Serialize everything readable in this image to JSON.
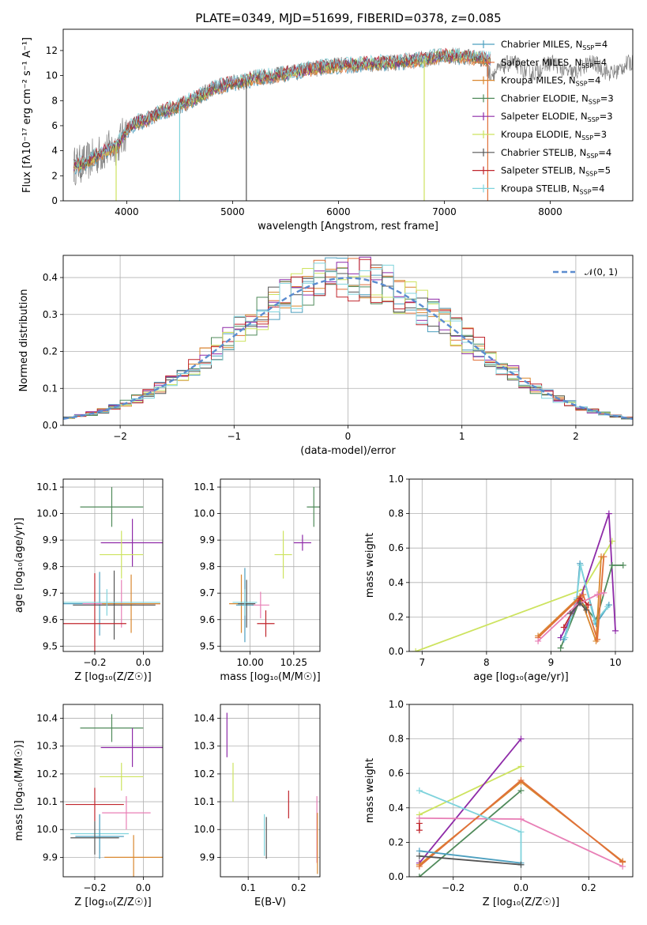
{
  "figure": {
    "title": "PLATE=0349, MJD=51699, FIBERID=0378, z=0.085"
  },
  "chart_data": [
    {
      "id": "spectrum",
      "type": "line",
      "xlabel": "wavelength [Angstrom, rest frame]",
      "ylabel": "Flux [fλ10⁻¹⁷ erg cm⁻² s⁻¹ A⁻¹]",
      "xlim": [
        3400,
        8780
      ],
      "ylim": [
        0,
        13.7
      ],
      "xticks": [
        "4000",
        "5000",
        "6000",
        "7000",
        "8000"
      ],
      "xtick_values": [
        4000,
        5000,
        6000,
        7000,
        8000
      ],
      "yticks": [
        "0",
        "2",
        "4",
        "6",
        "8",
        "10",
        "12"
      ],
      "ytick_values": [
        0,
        2,
        4,
        6,
        8,
        10,
        12
      ],
      "grid": false,
      "legend_position": "right",
      "data_color": "#808080",
      "model_continuum": {
        "x": [
          3500,
          3600,
          3700,
          3800,
          3900,
          4000,
          4100,
          4200,
          4300,
          4400,
          4500,
          4600,
          4700,
          4800,
          4900,
          5000,
          5100,
          5200,
          5400,
          5600,
          5800,
          6000,
          6200,
          6400,
          6600,
          6800,
          7000,
          7200,
          7400
        ],
        "y": [
          2.8,
          3.0,
          3.5,
          4.0,
          4.3,
          5.6,
          6.3,
          6.5,
          7.0,
          7.3,
          7.6,
          8.0,
          8.4,
          8.9,
          9.2,
          9.4,
          9.5,
          9.8,
          10.0,
          10.3,
          10.6,
          10.8,
          10.9,
          11.0,
          11.1,
          11.3,
          11.6,
          11.5,
          11.3
        ]
      },
      "series": [
        {
          "name": "Chabrier MILES",
          "nssp": "4",
          "color": "#4c9fbf"
        },
        {
          "name": "Salpeter MILES",
          "nssp": "4",
          "color": "#e0703a"
        },
        {
          "name": "Kroupa MILES",
          "nssp": "4",
          "color": "#d9872f"
        },
        {
          "name": "Chabrier ELODIE",
          "nssp": "3",
          "color": "#4f8a5a"
        },
        {
          "name": "Salpeter ELODIE",
          "nssp": "3",
          "color": "#8e2aa8"
        },
        {
          "name": "Kroupa ELODIE",
          "nssp": "3",
          "color": "#cde35f"
        },
        {
          "name": "Chabrier STELIB",
          "nssp": "4",
          "color": "#555555"
        },
        {
          "name": "Salpeter STELIB",
          "nssp": "5",
          "color": "#c0262d"
        },
        {
          "name": "Kroupa STELIB",
          "nssp": "4",
          "color": "#7fd3dc"
        }
      ]
    },
    {
      "id": "residuals",
      "type": "area",
      "xlabel": "(data-model)/error",
      "ylabel": "Normed distribution",
      "xlim": [
        -2.5,
        2.5
      ],
      "ylim": [
        0,
        0.46
      ],
      "xticks": [
        "−2",
        "−1",
        "0",
        "1",
        "2"
      ],
      "xtick_values": [
        -2,
        -1,
        0,
        1,
        2
      ],
      "yticks": [
        "0.0",
        "0.1",
        "0.2",
        "0.3",
        "0.4"
      ],
      "ytick_values": [
        0,
        0.1,
        0.2,
        0.3,
        0.4
      ],
      "grid": true,
      "legend_position": "top-right",
      "legend": [
        "𝒩(0, 1)"
      ],
      "bin_width": 0.1,
      "gaussian_color": "#5b8ccf",
      "series_colors": [
        "#4c9fbf",
        "#e0703a",
        "#d9872f",
        "#4f8a5a",
        "#8e2aa8",
        "#cde35f",
        "#555555",
        "#c0262d",
        "#7fd3dc"
      ]
    },
    {
      "id": "age-vs-Z",
      "type": "scatter",
      "xlabel": "Z [log₁₀(Z/Z☉)]",
      "ylabel": "age  [log₁₀(age/yr)]",
      "xlim": [
        -0.33,
        0.08
      ],
      "ylim": [
        9.48,
        10.13
      ],
      "xticks": [
        "−0.2",
        "0.0"
      ],
      "xtick_values": [
        -0.2,
        0.0
      ],
      "yticks": [
        "9.5",
        "9.6",
        "9.7",
        "9.8",
        "9.9",
        "10.0",
        "10.1"
      ],
      "ytick_values": [
        9.5,
        9.6,
        9.7,
        9.8,
        9.9,
        10.0,
        10.1
      ],
      "grid": true,
      "points": [
        {
          "x": -0.13,
          "y": 10.025,
          "xerr": 0.13,
          "yerr": 0.075,
          "color": "#4f8a5a"
        },
        {
          "x": -0.045,
          "y": 9.89,
          "xerr": 0.13,
          "yerr": 0.09,
          "color": "#8e2aa8"
        },
        {
          "x": -0.09,
          "y": 9.845,
          "xerr": 0.09,
          "yerr": 0.09,
          "color": "#cde35f"
        },
        {
          "x": -0.18,
          "y": 9.66,
          "xerr": 0.15,
          "yerr": 0.12,
          "color": "#4c9fbf"
        },
        {
          "x": -0.09,
          "y": 9.66,
          "xerr": 0.16,
          "yerr": 0.09,
          "color": "#e87fb6"
        },
        {
          "x": -0.05,
          "y": 9.66,
          "xerr": 0.12,
          "yerr": 0.11,
          "color": "#d9872f"
        },
        {
          "x": -0.12,
          "y": 9.655,
          "xerr": 0.17,
          "yerr": 0.13,
          "color": "#555555"
        },
        {
          "x": -0.2,
          "y": 9.585,
          "xerr": 0.13,
          "yerr": 0.19,
          "color": "#c0262d"
        },
        {
          "x": -0.15,
          "y": 9.665,
          "xerr": 0.22,
          "yerr": 0.05,
          "color": "#7fd3dc"
        }
      ]
    },
    {
      "id": "age-vs-mass",
      "type": "scatter",
      "xlabel": "mass [log₁₀(M/M☉)]",
      "ylabel": "",
      "xlim": [
        9.83,
        10.4
      ],
      "ylim": [
        9.48,
        10.13
      ],
      "xticks": [
        "10.00",
        "10.25"
      ],
      "xtick_values": [
        10.0,
        10.25
      ],
      "yticks": [
        "9.5",
        "9.6",
        "9.7",
        "9.8",
        "9.9",
        "10.0",
        "10.1"
      ],
      "ytick_values": [
        9.5,
        9.6,
        9.7,
        9.8,
        9.9,
        10.0,
        10.1
      ],
      "grid": true,
      "points": [
        {
          "x": 10.365,
          "y": 10.025,
          "xerr": 0.04,
          "yerr": 0.075,
          "color": "#4f8a5a"
        },
        {
          "x": 10.3,
          "y": 9.89,
          "xerr": 0.05,
          "yerr": 0.03,
          "color": "#8e2aa8"
        },
        {
          "x": 10.19,
          "y": 9.845,
          "xerr": 0.05,
          "yerr": 0.09,
          "color": "#cde35f"
        },
        {
          "x": 9.95,
          "y": 9.66,
          "xerr": 0.07,
          "yerr": 0.11,
          "color": "#d9872f"
        },
        {
          "x": 10.06,
          "y": 9.655,
          "xerr": 0.05,
          "yerr": 0.05,
          "color": "#e87fb6"
        },
        {
          "x": 9.97,
          "y": 9.655,
          "xerr": 0.05,
          "yerr": 0.14,
          "color": "#4c9fbf"
        },
        {
          "x": 9.98,
          "y": 9.66,
          "xerr": 0.05,
          "yerr": 0.09,
          "color": "#555555"
        },
        {
          "x": 10.09,
          "y": 9.585,
          "xerr": 0.05,
          "yerr": 0.05,
          "color": "#c0262d"
        },
        {
          "x": 9.97,
          "y": 9.665,
          "xerr": 0.07,
          "yerr": 0.05,
          "color": "#7fd3dc"
        }
      ]
    },
    {
      "id": "weight-vs-age",
      "type": "line",
      "xlabel": "age  [log₁₀(age/yr)]",
      "ylabel": "mass weight",
      "xlim": [
        6.8,
        10.27
      ],
      "ylim": [
        0,
        1.0
      ],
      "xticks": [
        "7",
        "8",
        "9",
        "10"
      ],
      "xtick_values": [
        7,
        8,
        9,
        10
      ],
      "yticks": [
        "0.0",
        "0.2",
        "0.4",
        "0.6",
        "0.8",
        "1.0"
      ],
      "ytick_values": [
        0,
        0.2,
        0.4,
        0.6,
        0.8,
        1.0
      ],
      "grid": true,
      "series": [
        {
          "color": "#cde35f",
          "x": [
            6.9,
            9.5,
            9.95
          ],
          "y": [
            0.0,
            0.36,
            0.64
          ]
        },
        {
          "color": "#8e2aa8",
          "x": [
            9.15,
            9.45,
            9.9,
            10.0
          ],
          "y": [
            0.08,
            0.3,
            0.8,
            0.12
          ]
        },
        {
          "color": "#4f8a5a",
          "x": [
            9.15,
            9.45,
            9.7,
            9.95,
            10.12
          ],
          "y": [
            0.02,
            0.3,
            0.18,
            0.5,
            0.5
          ]
        },
        {
          "color": "#4c9fbf",
          "x": [
            9.2,
            9.4,
            9.45,
            9.7,
            9.9
          ],
          "y": [
            0.07,
            0.3,
            0.51,
            0.16,
            0.27
          ]
        },
        {
          "color": "#7fd3dc",
          "x": [
            9.22,
            9.4,
            9.46,
            9.68,
            9.88
          ],
          "y": [
            0.08,
            0.31,
            0.5,
            0.17,
            0.26
          ]
        },
        {
          "color": "#d9872f",
          "x": [
            8.8,
            9.45,
            9.7,
            9.78
          ],
          "y": [
            0.09,
            0.32,
            0.06,
            0.55
          ]
        },
        {
          "color": "#e0703a",
          "x": [
            8.8,
            9.5,
            9.72,
            9.82
          ],
          "y": [
            0.08,
            0.33,
            0.07,
            0.55
          ]
        },
        {
          "color": "#c0262d",
          "x": [
            9.2,
            9.45,
            9.58
          ],
          "y": [
            0.14,
            0.31,
            0.27
          ]
        },
        {
          "color": "#e87fb6",
          "x": [
            8.8,
            9.4,
            9.72,
            9.82
          ],
          "y": [
            0.06,
            0.27,
            0.33,
            0.34
          ]
        },
        {
          "color": "#555555",
          "x": [
            9.3,
            9.45,
            9.55
          ],
          "y": [
            0.22,
            0.28,
            0.24
          ]
        }
      ]
    },
    {
      "id": "mass-vs-Z",
      "type": "scatter",
      "xlabel": "Z [log₁₀(Z/Z☉)]",
      "ylabel": "mass [log₁₀(M/M☉)]",
      "xlim": [
        -0.33,
        0.08
      ],
      "ylim": [
        9.83,
        10.45
      ],
      "xticks": [
        "−0.2",
        "0.0"
      ],
      "xtick_values": [
        -0.2,
        0.0
      ],
      "yticks": [
        "9.9",
        "10.0",
        "10.1",
        "10.2",
        "10.3",
        "10.4"
      ],
      "ytick_values": [
        9.9,
        10.0,
        10.1,
        10.2,
        10.3,
        10.4
      ],
      "grid": true,
      "points": [
        {
          "x": -0.13,
          "y": 10.365,
          "xerr": 0.13,
          "yerr": 0.05,
          "color": "#4f8a5a"
        },
        {
          "x": -0.045,
          "y": 10.295,
          "xerr": 0.13,
          "yerr": 0.07,
          "color": "#8e2aa8"
        },
        {
          "x": -0.09,
          "y": 10.19,
          "xerr": 0.09,
          "yerr": 0.05,
          "color": "#cde35f"
        },
        {
          "x": -0.2,
          "y": 10.09,
          "xerr": 0.12,
          "yerr": 0.06,
          "color": "#c0262d"
        },
        {
          "x": -0.07,
          "y": 10.06,
          "xerr": 0.1,
          "yerr": 0.06,
          "color": "#e87fb6"
        },
        {
          "x": -0.18,
          "y": 9.985,
          "xerr": 0.12,
          "yerr": 0.07,
          "color": "#7fd3dc"
        },
        {
          "x": -0.18,
          "y": 9.975,
          "xerr": 0.1,
          "yerr": 0.08,
          "color": "#4c9fbf"
        },
        {
          "x": -0.2,
          "y": 9.97,
          "xerr": 0.1,
          "yerr": 0.06,
          "color": "#555555"
        },
        {
          "x": -0.04,
          "y": 9.9,
          "xerr": 0.12,
          "yerr": 0.08,
          "color": "#d9872f"
        }
      ]
    },
    {
      "id": "mass-vs-EBV",
      "type": "scatter",
      "xlabel": "E(B-V)",
      "ylabel": "",
      "xlim": [
        0.045,
        0.242
      ],
      "ylim": [
        9.83,
        10.45
      ],
      "xticks": [
        "0.1",
        "0.2"
      ],
      "xtick_values": [
        0.1,
        0.2
      ],
      "yticks": [
        "9.9",
        "10.0",
        "10.1",
        "10.2",
        "10.3",
        "10.4"
      ],
      "ytick_values": [
        9.9,
        10.0,
        10.1,
        10.2,
        10.3,
        10.4
      ],
      "grid": true,
      "points": [
        {
          "x": 0.058,
          "y": 10.34,
          "xerr": 0.0,
          "yerr": 0.08,
          "color": "#8e2aa8"
        },
        {
          "x": 0.07,
          "y": 10.17,
          "xerr": 0.0,
          "yerr": 0.07,
          "color": "#cde35f"
        },
        {
          "x": 0.132,
          "y": 9.98,
          "xerr": 0.0,
          "yerr": 0.075,
          "color": "#7fd3dc"
        },
        {
          "x": 0.136,
          "y": 9.97,
          "xerr": 0.0,
          "yerr": 0.075,
          "color": "#555555"
        },
        {
          "x": 0.18,
          "y": 10.09,
          "xerr": 0.0,
          "yerr": 0.05,
          "color": "#c0262d"
        },
        {
          "x": 0.236,
          "y": 10.0,
          "xerr": 0.0,
          "yerr": 0.12,
          "color": "#e87fb6"
        },
        {
          "x": 0.237,
          "y": 9.95,
          "xerr": 0.0,
          "yerr": 0.11,
          "color": "#d9872f"
        }
      ]
    },
    {
      "id": "weight-vs-Z",
      "type": "line",
      "xlabel": "Z [log₁₀(Z/Z☉)]",
      "ylabel": "mass weight",
      "xlim": [
        -0.33,
        0.33
      ],
      "ylim": [
        0,
        1.0
      ],
      "xticks": [
        "−0.2",
        "0.0",
        "0.2"
      ],
      "xtick_values": [
        -0.2,
        0.0,
        0.2
      ],
      "yticks": [
        "0.0",
        "0.2",
        "0.4",
        "0.6",
        "0.8",
        "1.0"
      ],
      "ytick_values": [
        0,
        0.2,
        0.4,
        0.6,
        0.8,
        1.0
      ],
      "grid": true,
      "series": [
        {
          "color": "#cde35f",
          "x": [
            -0.3,
            0.0
          ],
          "y": [
            0.36,
            0.64
          ]
        },
        {
          "color": "#8e2aa8",
          "x": [
            -0.3,
            0.0
          ],
          "y": [
            0.08,
            0.8
          ]
        },
        {
          "color": "#4f8a5a",
          "x": [
            -0.3,
            0.0
          ],
          "y": [
            0.0,
            0.5
          ]
        },
        {
          "color": "#e87fb6",
          "x": [
            -0.3,
            0.0,
            0.3
          ],
          "y": [
            0.34,
            0.335,
            0.06
          ]
        },
        {
          "color": "#d9872f",
          "x": [
            -0.3,
            0.0,
            0.3
          ],
          "y": [
            0.07,
            0.55,
            0.09
          ]
        },
        {
          "color": "#e0703a",
          "x": [
            -0.3,
            0.0,
            0.3
          ],
          "y": [
            0.06,
            0.56,
            0.085
          ]
        },
        {
          "color": "#4c9fbf",
          "x": [
            -0.3,
            0.0
          ],
          "y": [
            0.15,
            0.08
          ]
        },
        {
          "color": "#7fd3dc",
          "x": [
            -0.3,
            0.0,
            0.0
          ],
          "y": [
            0.5,
            0.26,
            0.07
          ]
        },
        {
          "color": "#555555",
          "x": [
            -0.3,
            0.0
          ],
          "y": [
            0.12,
            0.07
          ]
        },
        {
          "color": "#c0262d",
          "x": [
            -0.3,
            -0.3
          ],
          "y": [
            0.27,
            0.31
          ]
        }
      ]
    }
  ]
}
